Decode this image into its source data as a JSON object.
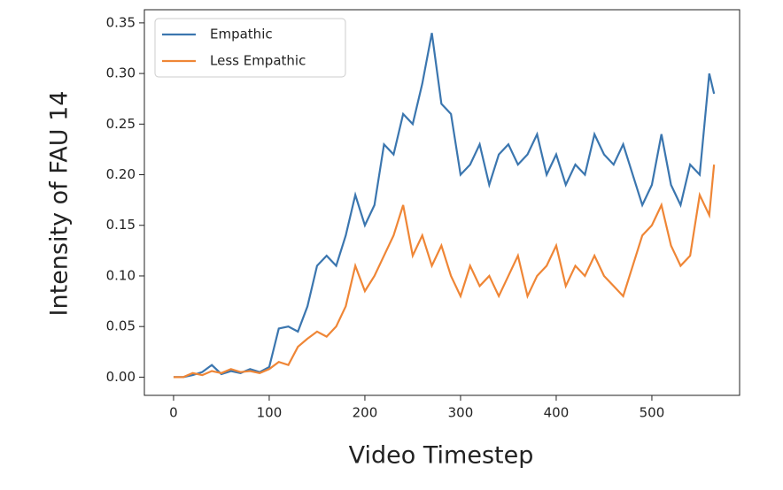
{
  "chart_data": {
    "type": "line",
    "xlabel": "Video Timestep",
    "ylabel": "Intensity of FAU 14",
    "x": [
      0,
      10,
      20,
      30,
      40,
      50,
      60,
      70,
      80,
      90,
      100,
      110,
      120,
      130,
      140,
      150,
      160,
      170,
      180,
      190,
      200,
      210,
      220,
      230,
      240,
      250,
      260,
      270,
      280,
      290,
      300,
      310,
      320,
      330,
      340,
      350,
      360,
      370,
      380,
      390,
      400,
      410,
      420,
      430,
      440,
      450,
      460,
      470,
      480,
      490,
      500,
      510,
      520,
      530,
      540,
      550,
      560,
      565
    ],
    "series": [
      {
        "name": "Empathic",
        "color": "#3b76af",
        "values": [
          0,
          0,
          0.002,
          0.005,
          0.012,
          0.003,
          0.006,
          0.004,
          0.008,
          0.005,
          0.01,
          0.048,
          0.05,
          0.045,
          0.07,
          0.11,
          0.12,
          0.11,
          0.14,
          0.18,
          0.15,
          0.17,
          0.23,
          0.22,
          0.26,
          0.25,
          0.29,
          0.34,
          0.27,
          0.26,
          0.2,
          0.21,
          0.23,
          0.19,
          0.22,
          0.23,
          0.21,
          0.22,
          0.24,
          0.2,
          0.22,
          0.19,
          0.21,
          0.2,
          0.24,
          0.22,
          0.21,
          0.23,
          0.2,
          0.17,
          0.19,
          0.24,
          0.19,
          0.17,
          0.21,
          0.2,
          0.3,
          0.28
        ]
      },
      {
        "name": "Less Empathic",
        "color": "#ef8636",
        "values": [
          0,
          0,
          0.004,
          0.002,
          0.006,
          0.004,
          0.008,
          0.005,
          0.006,
          0.004,
          0.008,
          0.015,
          0.012,
          0.03,
          0.038,
          0.045,
          0.04,
          0.05,
          0.07,
          0.11,
          0.085,
          0.1,
          0.12,
          0.14,
          0.17,
          0.12,
          0.14,
          0.11,
          0.13,
          0.1,
          0.08,
          0.11,
          0.09,
          0.1,
          0.08,
          0.1,
          0.12,
          0.08,
          0.1,
          0.11,
          0.13,
          0.09,
          0.11,
          0.1,
          0.12,
          0.1,
          0.09,
          0.08,
          0.11,
          0.14,
          0.15,
          0.17,
          0.13,
          0.11,
          0.12,
          0.18,
          0.16,
          0.21
        ]
      }
    ],
    "xlim": [
      -30.5,
      591.7
    ],
    "ylim": [
      -0.018,
      0.363
    ],
    "xticks": [
      0,
      100,
      200,
      300,
      400,
      500
    ],
    "yticks": [
      {
        "value": 0,
        "label": "0.00"
      },
      0.05,
      {
        "value": 0.1,
        "label": "0.10"
      },
      0.15,
      {
        "value": 0.2,
        "label": "0.20"
      },
      0.25,
      {
        "value": 0.3,
        "label": "0.30"
      },
      0.35
    ],
    "legend": "upper left"
  }
}
